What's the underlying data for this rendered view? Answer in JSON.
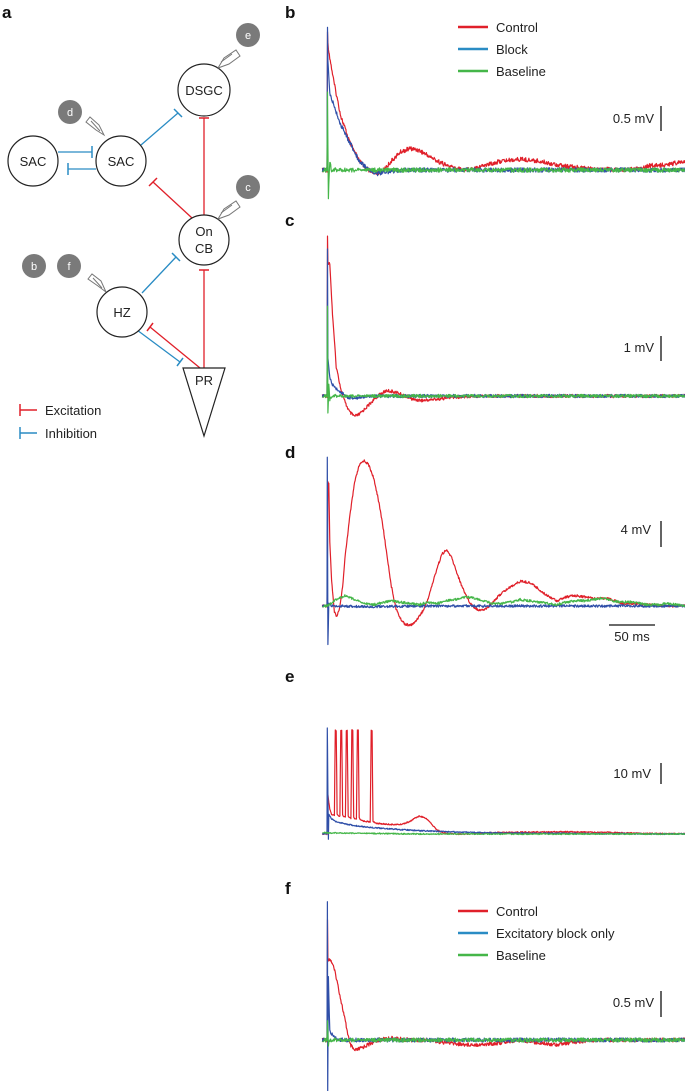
{
  "panel_labels": {
    "a": "a",
    "b": "b",
    "c": "c",
    "d": "d",
    "e": "e",
    "f": "f"
  },
  "colors": {
    "excitation": "#e0202a",
    "inhibition": "#2a8cc4",
    "control": "#e0202a",
    "block": "#2f4fa8",
    "baseline": "#45b649",
    "badge": "#7a7a7a",
    "node_stroke": "#222222"
  },
  "diagram": {
    "nodes": {
      "sac_left": "SAC",
      "sac_right": "SAC",
      "dsgc": "DSGC",
      "oncb_line1": "On",
      "oncb_line2": "CB",
      "hz": "HZ",
      "pr": "PR"
    },
    "badges": {
      "d": "d",
      "e": "e",
      "c": "c",
      "b": "b",
      "f": "f"
    },
    "legend": {
      "excitation": "Excitation",
      "inhibition": "Inhibition"
    }
  },
  "panels": {
    "b": {
      "legend": [
        "Control",
        "Block",
        "Baseline"
      ],
      "scale": "0.5 mV"
    },
    "c": {
      "scale": "1 mV"
    },
    "d": {
      "scale": "4 mV",
      "time_scale": "50 ms"
    },
    "e": {
      "scale": "10 mV"
    },
    "f": {
      "legend": [
        "Control",
        "Excitatory block only",
        "Baseline"
      ],
      "scale": "0.5 mV"
    }
  },
  "chart_data": [
    {
      "panel": "b",
      "type": "line",
      "x_unit": "ms",
      "y_unit": "mV",
      "series": [
        {
          "name": "Control",
          "x": [
            -5,
            0,
            0.5,
            1,
            3,
            8,
            15,
            25,
            35,
            45,
            55,
            60,
            70,
            80,
            90,
            100,
            110,
            120,
            130,
            140,
            150,
            170,
            190,
            210,
            230,
            250,
            260,
            280,
            300,
            320,
            340,
            350,
            360,
            370,
            380,
            390,
            400
          ],
          "y": [
            0,
            0,
            1.55,
            1.4,
            1.25,
            0.95,
            0.6,
            0.3,
            0.1,
            0.0,
            -0.03,
            -0.02,
            0.1,
            0.2,
            0.24,
            0.22,
            0.16,
            0.1,
            0.05,
            0.02,
            0.0,
            0.05,
            0.1,
            0.12,
            0.1,
            0.06,
            0.04,
            0.02,
            0.01,
            0.0,
            0.02,
            0.05,
            0.05,
            0.06,
            0.08,
            0.08,
            0.1
          ]
        },
        {
          "name": "Block",
          "x": [
            -5,
            0,
            0.5,
            1,
            3,
            8,
            15,
            25,
            35,
            45,
            55,
            65,
            80,
            100,
            400
          ],
          "y": [
            0,
            0,
            1.6,
            1.2,
            0.85,
            0.7,
            0.5,
            0.3,
            0.1,
            0.01,
            -0.04,
            -0.02,
            0,
            0,
            0
          ]
        },
        {
          "name": "Baseline",
          "x": [
            -5,
            0,
            0.5,
            1.5,
            3,
            5,
            400
          ],
          "y": [
            0,
            0,
            0.85,
            -0.3,
            0.1,
            0,
            0
          ]
        }
      ]
    },
    {
      "panel": "c",
      "type": "line",
      "x_unit": "ms",
      "y_unit": "mV",
      "series": [
        {
          "name": "Control",
          "x": [
            -5,
            0,
            0.5,
            1,
            3,
            6,
            10,
            15,
            20,
            25,
            30,
            35,
            45,
            55,
            65,
            75,
            85,
            95,
            105,
            120,
            140,
            160,
            180,
            400
          ],
          "y": [
            0,
            0,
            4.35,
            3.6,
            3.6,
            2.2,
            0.8,
            0.2,
            -0.2,
            -0.45,
            -0.55,
            -0.5,
            -0.25,
            0.0,
            0.15,
            0.1,
            0.0,
            -0.1,
            -0.12,
            -0.08,
            -0.03,
            0,
            0,
            0
          ]
        },
        {
          "name": "Block",
          "x": [
            -5,
            0,
            0.5,
            1,
            3,
            6,
            10,
            15,
            20,
            25,
            30,
            45,
            400
          ],
          "y": [
            0,
            0,
            4.0,
            1.0,
            0.5,
            0.3,
            0.2,
            0.1,
            0.0,
            -0.05,
            -0.05,
            0,
            0
          ]
        },
        {
          "name": "Baseline",
          "x": [
            -5,
            0,
            0.5,
            1,
            2,
            3,
            5,
            400
          ],
          "y": [
            0,
            0,
            2.4,
            -0.45,
            0.3,
            -0.1,
            0,
            0
          ]
        }
      ]
    },
    {
      "panel": "d",
      "type": "line",
      "x_unit": "ms",
      "y_unit": "mV",
      "series": [
        {
          "name": "Control",
          "x": [
            -5,
            0,
            1,
            2,
            3,
            5,
            8,
            11,
            14,
            17,
            20,
            25,
            30,
            35,
            40,
            45,
            50,
            55,
            60,
            65,
            70,
            75,
            80,
            85,
            90,
            95,
            100,
            105,
            110,
            115,
            120,
            125,
            130,
            135,
            140,
            145,
            150,
            155,
            160,
            165,
            170,
            175,
            180,
            190,
            200,
            210,
            220,
            225,
            230,
            235,
            240,
            245,
            250,
            260,
            270,
            280,
            290,
            300,
            310,
            320,
            330,
            340,
            350,
            360,
            370,
            380,
            390,
            400
          ],
          "y": [
            0,
            0,
            9.5,
            9.5,
            5,
            2,
            -0.5,
            -0.8,
            0,
            1.5,
            4,
            7,
            9.5,
            10.8,
            11.2,
            10.9,
            10,
            8.5,
            6.5,
            4,
            1.5,
            -0.2,
            -1.0,
            -1.4,
            -1.5,
            -1.3,
            -0.8,
            -0.3,
            0.6,
            1.8,
            3.0,
            4.0,
            4.3,
            3.8,
            2.8,
            1.8,
            1.0,
            0.3,
            -0.1,
            -0.3,
            -0.3,
            -0.1,
            0.3,
            1.0,
            1.5,
            1.9,
            1.8,
            1.6,
            1.3,
            1.0,
            0.8,
            0.6,
            0.4,
            0.7,
            0.8,
            0.7,
            0.6,
            0.6,
            0.5,
            0.2,
            0.2,
            0.15,
            0.1,
            0.05,
            0.0,
            0.0,
            0.0,
            0.0
          ]
        },
        {
          "name": "Block",
          "x": [
            -5,
            0,
            0.3,
            1,
            2,
            5,
            50,
            100,
            200,
            400
          ],
          "y": [
            0,
            0,
            11.5,
            -3,
            0.2,
            0,
            -0.05,
            0,
            0,
            0
          ]
        },
        {
          "name": "Baseline",
          "x": [
            -5,
            0,
            10,
            20,
            30,
            40,
            50,
            60,
            70,
            80,
            90,
            100,
            110,
            120,
            130,
            140,
            150,
            160,
            170,
            180,
            190,
            200,
            210,
            220,
            230,
            240,
            250,
            260,
            270,
            280,
            290,
            300,
            310,
            320,
            330,
            340,
            350,
            360,
            370,
            380,
            390,
            400
          ],
          "y": [
            0,
            0,
            0.5,
            0.8,
            0.5,
            0.2,
            0.1,
            0.25,
            0.4,
            0.3,
            0.2,
            0.1,
            0.3,
            0.2,
            0.4,
            0.5,
            0.7,
            0.6,
            0.4,
            0.2,
            0.2,
            0.3,
            0.5,
            0.4,
            0.3,
            0.2,
            0.1,
            0.3,
            0.4,
            0.4,
            0.5,
            0.6,
            0.4,
            0.3,
            0.3,
            0.2,
            0.1,
            0.1,
            0.2,
            0.1,
            0.0,
            0.0
          ]
        }
      ]
    },
    {
      "panel": "e",
      "type": "line",
      "x_unit": "ms",
      "y_unit": "mV",
      "series": [
        {
          "name": "Control",
          "x": [
            -5,
            0,
            1,
            3,
            5,
            8,
            9,
            10,
            11,
            12,
            14,
            15,
            16,
            17,
            18,
            20,
            21,
            22,
            23,
            24,
            26,
            27,
            28,
            29,
            30,
            32,
            33,
            34,
            35,
            36,
            38,
            39,
            40,
            45,
            47,
            48,
            49,
            50,
            52,
            55,
            60,
            70,
            80,
            90,
            95,
            100,
            105,
            110,
            115,
            120,
            125,
            130,
            140,
            150,
            170,
            200,
            250,
            300,
            350,
            400
          ],
          "y": [
            0,
            0,
            7,
            4.5,
            3.5,
            3.3,
            18.5,
            18.5,
            3.5,
            3.3,
            3.2,
            18.5,
            18.5,
            3.5,
            3.1,
            3.0,
            18.5,
            18.5,
            3.2,
            2.9,
            2.8,
            18.5,
            18.5,
            3.0,
            2.7,
            2.6,
            18.5,
            18.5,
            3.0,
            2.5,
            2.4,
            2.4,
            2.3,
            2.2,
            2.1,
            18.5,
            18.5,
            2.2,
            2.0,
            1.9,
            1.8,
            1.7,
            1.7,
            2.2,
            2.8,
            3.2,
            3.0,
            2.5,
            1.5,
            0.7,
            0.3,
            0.1,
            0,
            0,
            0.2,
            0.3,
            0.4,
            0.3,
            0.1,
            0
          ]
        },
        {
          "name": "Block",
          "x": [
            -5,
            0,
            0.3,
            1.5,
            2,
            5,
            10,
            20,
            30,
            40,
            60,
            80,
            100,
            150,
            200,
            300,
            400
          ],
          "y": [
            0,
            0,
            19,
            -1,
            3.5,
            2.7,
            2.2,
            1.8,
            1.5,
            1.3,
            1.0,
            0.8,
            0.6,
            0.3,
            0.15,
            0.05,
            0
          ]
        },
        {
          "name": "Baseline",
          "x": [
            -5,
            0,
            50,
            100,
            200,
            300,
            400
          ],
          "y": [
            0.3,
            0.2,
            0.1,
            0,
            0,
            0,
            0
          ]
        }
      ]
    },
    {
      "panel": "f",
      "type": "line",
      "x_unit": "ms",
      "y_unit": "mV",
      "series": [
        {
          "name": "Control",
          "x": [
            -5,
            0,
            0.5,
            1,
            3,
            6,
            10,
            15,
            20,
            25,
            30,
            35,
            45,
            55,
            70,
            90,
            110,
            130,
            150,
            170,
            190,
            210,
            230,
            250,
            270,
            290,
            310,
            330,
            350,
            370,
            400
          ],
          "y": [
            0,
            0,
            1.35,
            0.9,
            0.9,
            0.85,
            0.7,
            0.45,
            0.2,
            -0.05,
            -0.12,
            -0.1,
            -0.05,
            0,
            0.02,
            0,
            0,
            -0.03,
            -0.05,
            -0.05,
            -0.03,
            0,
            -0.03,
            -0.05,
            -0.02,
            0,
            0,
            0,
            0,
            0,
            0
          ]
        },
        {
          "name": "Excitatory block only",
          "x": [
            -5,
            0,
            0.4,
            0.8,
            1.5,
            3,
            6,
            10,
            15,
            400
          ],
          "y": [
            0,
            0,
            1.55,
            -0.6,
            0.7,
            0.1,
            0.05,
            0.02,
            0,
            0
          ]
        },
        {
          "name": "Baseline",
          "x": [
            -5,
            0,
            0.5,
            1.5,
            3,
            400
          ],
          "y": [
            0,
            0,
            0.2,
            -0.05,
            0,
            0
          ]
        }
      ]
    }
  ]
}
